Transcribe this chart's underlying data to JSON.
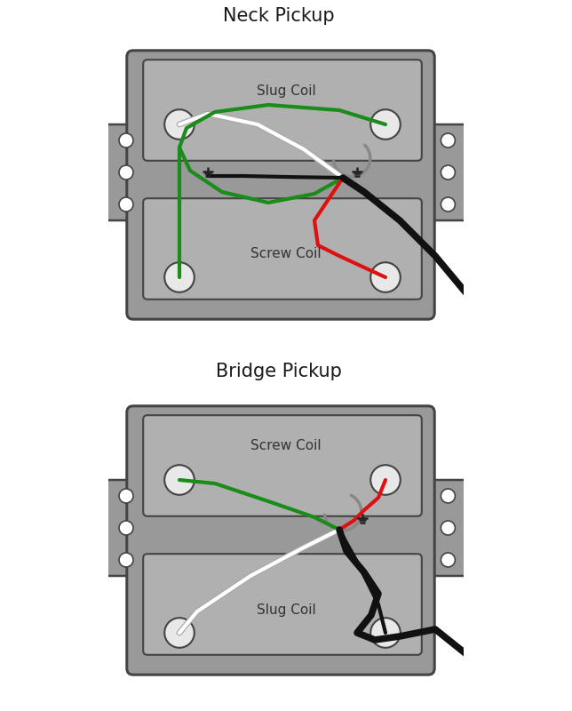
{
  "title_neck": "Neck Pickup",
  "title_bridge": "Bridge Pickup",
  "label_slug": "Slug Coil",
  "label_screw": "Screw Coil",
  "bg_color": "#ffffff",
  "body_color": "#999999",
  "body_edge_color": "#444444",
  "coil_color": "#b0b0b0",
  "coil_edge_color": "#444444",
  "tab_color": "#999999",
  "tab_edge_color": "#444444",
  "wire_green": "#1a8c1a",
  "wire_white": "#ffffff",
  "wire_black": "#111111",
  "wire_red": "#dd1111",
  "wire_gray": "#888888",
  "wire_lw": 3.0,
  "pole_color": "#e8e8e8",
  "pole_edge": "#444444",
  "ground_color": "#222222"
}
